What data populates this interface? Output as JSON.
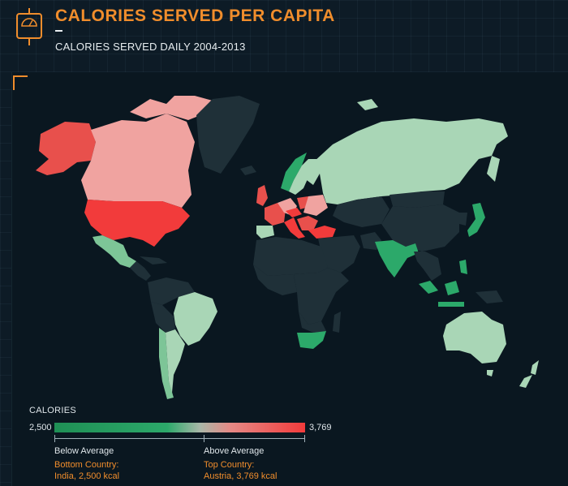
{
  "header": {
    "title": "CALORIES SERVED PER CAPITA",
    "subtitle": "CALORIES SERVED DAILY 2004-2013",
    "icon": "scale-icon"
  },
  "colors": {
    "accent": "#f08d2c",
    "background": "#0d1b26",
    "no_data_land": "#1f3038",
    "above_average_high": "#f23b3b",
    "above_average_mid": "#e86a6a",
    "above_average_low": "#f0a3a0",
    "below_average_light": "#a9d6b6",
    "below_average_mid": "#7dc597",
    "below_average_dark": "#2ca96a"
  },
  "legend": {
    "title": "CALORIES",
    "min": "2,500",
    "max": "3,769",
    "below_label": "Below Average",
    "above_label": "Above Average",
    "bottom_country_label": "Bottom Country:",
    "bottom_country_value": "India, 2,500 kcal",
    "top_country_label": "Top Country:",
    "top_country_value": "Austria, 3,769 kcal"
  }
}
